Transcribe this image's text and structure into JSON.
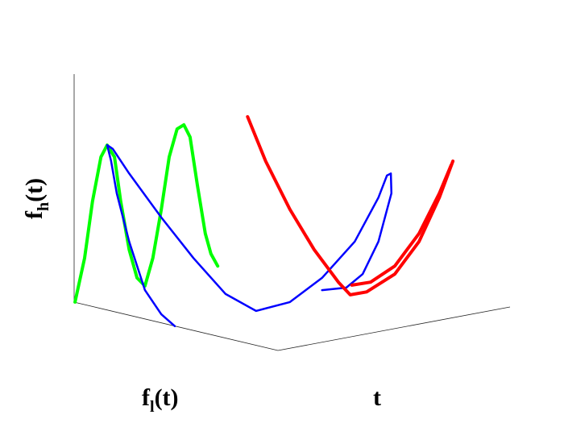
{
  "chart_data": {
    "type": "line3d",
    "axis_labels": {
      "z": {
        "main": "f",
        "sub": "h",
        "rest": "(t)"
      },
      "x": {
        "main": "f",
        "sub": "l",
        "rest": "(t)"
      },
      "y": {
        "main": "t"
      }
    },
    "xlim": [
      0,
      100
    ],
    "ylim": [
      0,
      100
    ],
    "grid": false,
    "series": [
      {
        "color": "#00ff00",
        "line_width": 4,
        "x": [
          13.3,
          15,
          16.4,
          17.9,
          19,
          20.3,
          21.4,
          22.9,
          24.3,
          25.7,
          27.1,
          28.6,
          30,
          31.4,
          32.6,
          33.7,
          35,
          36.4,
          37.4,
          38.6
        ],
        "values": [
          28.6,
          39,
          52.4,
          62.9,
          65.7,
          62.9,
          52.4,
          41,
          34.3,
          32.4,
          39,
          50.5,
          62.9,
          69.5,
          70.5,
          67.6,
          56.2,
          44.8,
          40,
          37.1
        ]
      },
      {
        "color": "#0000ff",
        "line_width": 2.5,
        "x": [
          31,
          28.6,
          25.7,
          22.9,
          20.7,
          19.7,
          19,
          20,
          22.9,
          28.6,
          34.3,
          40,
          45.4,
          51.4,
          57.1,
          62.9,
          67.1,
          68.6,
          69.3,
          69.4,
          67.1,
          64.3,
          61.4,
          57.1
        ],
        "values": [
          22.9,
          25.7,
          31.4,
          42.9,
          54.3,
          61.9,
          65.7,
          64.8,
          59,
          48.6,
          39,
          30.5,
          26.5,
          28.6,
          34.3,
          42.9,
          53.3,
          58.5,
          59,
          54.3,
          42.9,
          35.2,
          32,
          31.4
        ]
      },
      {
        "color": "#ff0000",
        "line_width": 4,
        "x": [
          43.9,
          47.1,
          51.4,
          55.7,
          60,
          62.1,
          65,
          70,
          74.3,
          77.9,
          80.3
        ],
        "values": [
          72.4,
          61.9,
          50.5,
          41,
          33.3,
          30.3,
          31,
          35.2,
          42.9,
          53.3,
          61.9
        ]
      },
      {
        "color": "#ff0000",
        "line_width": 4,
        "x": [
          62.4,
          65.7,
          70,
          74.3,
          77.9,
          80
        ],
        "values": [
          32.6,
          33.3,
          37.1,
          44.8,
          54.3,
          61
        ]
      }
    ]
  }
}
